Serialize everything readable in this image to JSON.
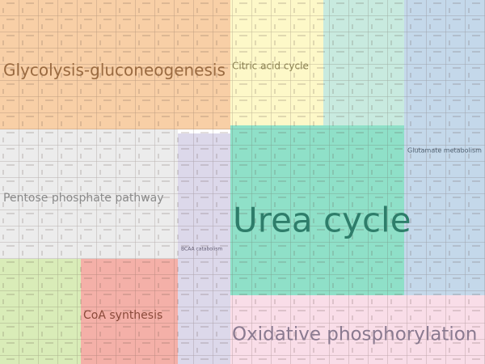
{
  "regions": [
    {
      "label": "Glycolysis-gluconeogenesis"
    },
    {
      "label": "Citric acid cycle"
    },
    {
      "label": "Glutamate metabolism"
    },
    {
      "label": "Pentose phosphate pathway"
    },
    {
      "label": "BCAA catabolism"
    },
    {
      "label": "Urea cycle"
    },
    {
      "label": "CoA synthesis"
    },
    {
      "label": "Oxidative phosphorylation"
    }
  ]
}
